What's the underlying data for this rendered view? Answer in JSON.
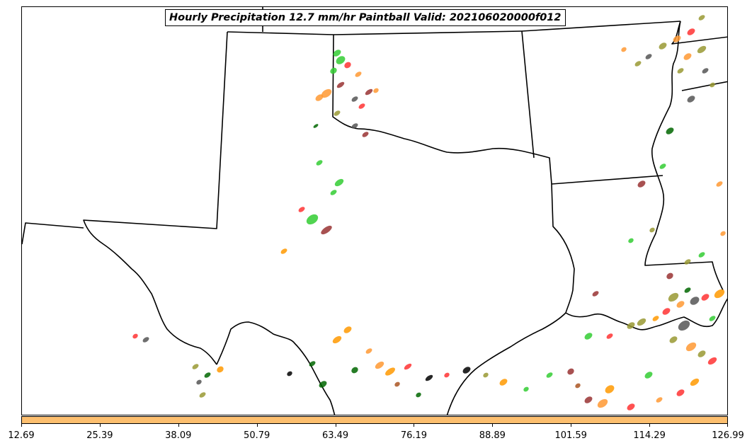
{
  "title": "Hourly Precipitation 12.7 mm/hr Paintball Valid: 202106020000f012",
  "colorbar": {
    "color": "#fdbf6f",
    "ticks": [
      "12.69",
      "25.39",
      "38.09",
      "50.79",
      "63.49",
      "76.19",
      "88.89",
      "101.59",
      "114.29",
      "126.99"
    ]
  },
  "member_colors": [
    "#33cc33",
    "#ff3333",
    "#ff9933",
    "#993333",
    "#555555",
    "#006600",
    "#999933",
    "#ff9900",
    "#000000",
    "#aa5522"
  ]
}
